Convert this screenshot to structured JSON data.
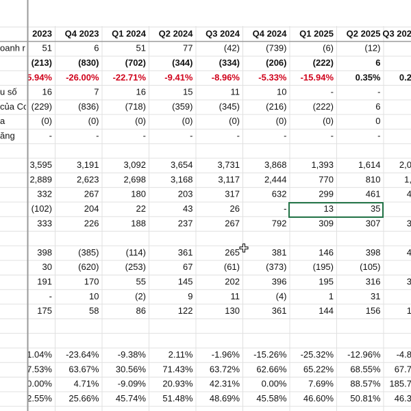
{
  "sheet": {
    "columns": [
      "2023",
      "Q4 2023",
      "Q1 2024",
      "Q2 2024",
      "Q3 2024",
      "Q4 2024",
      "Q1 2025",
      "Q2 2025",
      "Q3 202"
    ],
    "rows": [
      {
        "label": "oanh r",
        "cells": [
          "51",
          "6",
          "51",
          "77",
          "(42)",
          "(739)",
          "(6)",
          "(12)"
        ]
      },
      {
        "bold": true,
        "cells": [
          "(213)",
          "(830)",
          "(702)",
          "(344)",
          "(334)",
          "(206)",
          "(222)",
          "6"
        ]
      },
      {
        "bold": true,
        "cells": [
          {
            "text": "5.94%",
            "color": "#d0021b"
          },
          {
            "text": "-26.00%",
            "color": "#d0021b"
          },
          {
            "text": "-22.71%",
            "color": "#d0021b"
          },
          {
            "text": "-9.41%",
            "color": "#d0021b"
          },
          {
            "text": "-8.96%",
            "color": "#d0021b"
          },
          {
            "text": "-5.33%",
            "color": "#d0021b"
          },
          {
            "text": "-15.94%",
            "color": "#d0021b"
          },
          "0.35%",
          "0.2"
        ]
      },
      {
        "label": "u số",
        "cells": [
          "16",
          "7",
          "16",
          "15",
          "11",
          "10",
          "-",
          "-"
        ]
      },
      {
        "label": "của Co",
        "cells": [
          "(229)",
          "(836)",
          "(718)",
          "(359)",
          "(345)",
          "(216)",
          "(222)",
          "6"
        ]
      },
      {
        "label": "a",
        "cells": [
          "(0)",
          "(0)",
          "(0)",
          "(0)",
          "(0)",
          "(0)",
          "(0)",
          "0"
        ]
      },
      {
        "label": "ăng",
        "cells": [
          "-",
          "-",
          "-",
          "-",
          "-",
          "-",
          "-",
          "-"
        ]
      },
      {
        "cells": [
          "3,595",
          "3,191",
          "3,092",
          "3,654",
          "3,731",
          "3,868",
          "1,393",
          "1,614",
          "2,0"
        ]
      },
      {
        "cells": [
          "2,889",
          "2,623",
          "2,698",
          "3,168",
          "3,117",
          "2,444",
          "770",
          "810",
          "1,"
        ]
      },
      {
        "cells": [
          "332",
          "267",
          "180",
          "203",
          "317",
          "632",
          "299",
          "461",
          "4"
        ]
      },
      {
        "cells": [
          "(102)",
          "204",
          "22",
          "43",
          "26",
          "-",
          "13",
          "35"
        ]
      },
      {
        "cells": [
          "333",
          "226",
          "188",
          "237",
          "267",
          "792",
          "309",
          "307",
          "3"
        ]
      },
      {
        "cells": [
          "398",
          "(385)",
          "(114)",
          "361",
          "265",
          "381",
          "146",
          "398",
          "4"
        ]
      },
      {
        "cells": [
          "30",
          "(620)",
          "(253)",
          "67",
          "(61)",
          "(373)",
          "(195)",
          "(105)"
        ]
      },
      {
        "cells": [
          "191",
          "170",
          "55",
          "145",
          "202",
          "396",
          "195",
          "316",
          "3"
        ]
      },
      {
        "cells": [
          "-",
          "10",
          "(2)",
          "9",
          "11",
          "(4)",
          "1",
          "31"
        ]
      },
      {
        "cells": [
          "175",
          "58",
          "86",
          "122",
          "130",
          "361",
          "144",
          "156",
          "1"
        ]
      },
      {
        "cells": [
          "1.04%",
          "-23.64%",
          "-9.38%",
          "2.11%",
          "-1.96%",
          "-15.26%",
          "-25.32%",
          "-12.96%",
          "-4.8"
        ]
      },
      {
        "cells": [
          "7.53%",
          "63.67%",
          "30.56%",
          "71.43%",
          "63.72%",
          "62.66%",
          "65.22%",
          "68.55%",
          "67.7"
        ]
      },
      {
        "cells": [
          "0.00%",
          "4.71%",
          "-9.09%",
          "20.93%",
          "42.31%",
          "0.00%",
          "7.69%",
          "88.57%",
          "185.7"
        ]
      },
      {
        "cells": [
          "2.55%",
          "25.66%",
          "45.74%",
          "51.48%",
          "48.69%",
          "45.58%",
          "46.60%",
          "50.81%",
          "46.3"
        ]
      }
    ]
  }
}
